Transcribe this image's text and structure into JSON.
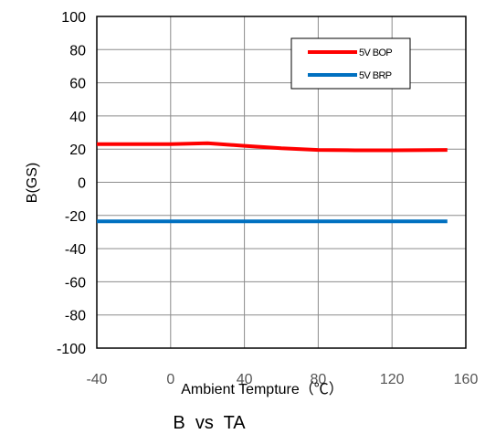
{
  "chart_data": {
    "type": "line",
    "title": "B  vs  TA",
    "xlabel": "Ambient Tempture（℃）",
    "ylabel": "B(GS)",
    "xlim": [
      -40,
      160
    ],
    "ylim": [
      -100,
      100
    ],
    "xticks": [
      -40,
      0,
      40,
      80,
      120,
      160
    ],
    "yticks": [
      100,
      80,
      60,
      40,
      20,
      0,
      -20,
      -40,
      -60,
      -80,
      -100
    ],
    "grid": true,
    "legend_position": "top-right",
    "series": [
      {
        "name": "5V BOP",
        "color": "#ff0000",
        "x": [
          -40,
          -20,
          0,
          20,
          40,
          60,
          80,
          100,
          120,
          150
        ],
        "y": [
          23,
          23,
          23,
          23.5,
          22,
          20.5,
          19.5,
          19.3,
          19.3,
          19.5
        ]
      },
      {
        "name": "5V BRP",
        "color": "#0070c0",
        "x": [
          -40,
          0,
          40,
          80,
          120,
          150
        ],
        "y": [
          -23.5,
          -23.5,
          -23.5,
          -23.5,
          -23.5,
          -23.5
        ]
      }
    ]
  }
}
